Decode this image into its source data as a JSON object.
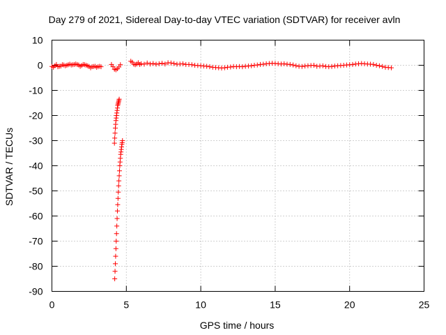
{
  "chart_data": {
    "type": "scatter",
    "title": "Day 279 of 2021, Sidereal Day-to-day VTEC variation (SDTVAR) for receiver avln",
    "xlabel": "GPS time / hours",
    "ylabel": "SDTVAR / TECUs",
    "xlim": [
      0,
      25
    ],
    "ylim": [
      -90,
      10
    ],
    "xticks": [
      0,
      5,
      10,
      15,
      20,
      25
    ],
    "yticks": [
      10,
      0,
      -10,
      -20,
      -30,
      -40,
      -50,
      -60,
      -70,
      -80,
      -90
    ],
    "grid": true,
    "marker": "+",
    "color": "#ff0000",
    "series": [
      {
        "name": "SDTVAR",
        "segments": [
          {
            "x": [
              0.0,
              0.1,
              0.2,
              0.3,
              0.4,
              0.5,
              0.6,
              0.7,
              0.8,
              0.9,
              1.0,
              1.1,
              1.2,
              1.3,
              1.4,
              1.5,
              1.6,
              1.7,
              1.8,
              1.9,
              2.0,
              2.1,
              2.2,
              2.3,
              2.4,
              2.5,
              2.6,
              2.7,
              2.8,
              2.9,
              3.0,
              3.1,
              3.2,
              3.3
            ],
            "y": [
              -0.5,
              -0.8,
              -0.2,
              0.3,
              -0.6,
              -0.4,
              -0.3,
              0.2,
              0.1,
              -0.2,
              0.0,
              0.2,
              0.4,
              0.1,
              0.2,
              0.3,
              0.5,
              0.3,
              0.1,
              -0.4,
              -0.1,
              0.3,
              0.2,
              0.0,
              -0.2,
              -0.5,
              -1.0,
              -0.6,
              -0.5,
              -0.4,
              -0.8,
              -0.6,
              -0.4,
              -0.6
            ]
          },
          {
            "x": [
              4.0,
              4.1,
              4.2,
              4.3,
              4.4,
              4.5,
              4.6
            ],
            "y": [
              0.3,
              -0.6,
              -1.6,
              -1.8,
              -1.4,
              -0.7,
              0.2
            ]
          },
          {
            "x": [
              5.3,
              5.4,
              5.5,
              5.6,
              5.7,
              5.8,
              5.9,
              6.0,
              6.2,
              6.4,
              6.6,
              6.8,
              7.0,
              7.2,
              7.4,
              7.6,
              7.8,
              8.0,
              8.2,
              8.4,
              8.6,
              8.8,
              9.0,
              9.2,
              9.4,
              9.6,
              9.8,
              10.0,
              10.2,
              10.4,
              10.6,
              10.8,
              11.0,
              11.2,
              11.4,
              11.6,
              11.8,
              12.0,
              12.2,
              12.4,
              12.6,
              12.8,
              13.0,
              13.2,
              13.4,
              13.6,
              13.8,
              14.0,
              14.2,
              14.4,
              14.6,
              14.8,
              15.0,
              15.2,
              15.4,
              15.6,
              15.8,
              16.0,
              16.2,
              16.4,
              16.6,
              16.8,
              17.0,
              17.2,
              17.4,
              17.6,
              17.8,
              18.0,
              18.2,
              18.4,
              18.6,
              18.8,
              19.0,
              19.2,
              19.4,
              19.6,
              19.8,
              20.0,
              20.2,
              20.4,
              20.6,
              20.8,
              21.0,
              21.2,
              21.4,
              21.6,
              21.8,
              22.0,
              22.2,
              22.4,
              22.6,
              22.8
            ],
            "y": [
              1.6,
              1.2,
              0.4,
              0.2,
              0.5,
              1.0,
              0.3,
              0.6,
              0.4,
              0.9,
              0.5,
              0.7,
              0.4,
              0.6,
              0.8,
              0.5,
              1.0,
              0.9,
              0.7,
              0.4,
              0.5,
              0.6,
              0.3,
              0.3,
              0.2,
              0.0,
              -0.1,
              -0.2,
              -0.3,
              -0.4,
              -0.6,
              -0.8,
              -0.9,
              -1.0,
              -1.1,
              -1.0,
              -0.8,
              -0.7,
              -0.5,
              -0.6,
              -0.5,
              -0.6,
              -0.4,
              -0.3,
              -0.2,
              0.0,
              0.1,
              0.3,
              0.4,
              0.6,
              0.7,
              0.8,
              0.7,
              0.6,
              0.5,
              0.6,
              0.4,
              0.3,
              0.1,
              -0.2,
              -0.4,
              -0.5,
              -0.3,
              -0.2,
              -0.1,
              0.0,
              -0.4,
              -0.3,
              -0.2,
              -0.5,
              -0.6,
              -0.5,
              -0.3,
              -0.2,
              -0.1,
              0.0,
              0.1,
              0.2,
              0.3,
              0.5,
              0.6,
              0.7,
              0.6,
              0.5,
              0.4,
              0.3,
              0.0,
              -0.2,
              -0.5,
              -0.8,
              -0.9,
              -1.0
            ]
          },
          {
            "x": [
              4.2,
              4.22,
              4.24,
              4.26,
              4.28,
              4.3,
              4.32,
              4.34,
              4.36,
              4.38,
              4.4,
              4.42,
              4.44,
              4.46,
              4.48,
              4.5,
              4.52
            ],
            "y": [
              -31.0,
              -29.0,
              -27.0,
              -25.0,
              -23.5,
              -22.0,
              -21.0,
              -20.0,
              -19.0,
              -18.0,
              -17.0,
              -16.0,
              -15.5,
              -15.0,
              -14.5,
              -14.0,
              -13.5
            ]
          },
          {
            "x": [
              4.22,
              4.24,
              4.26,
              4.28,
              4.3,
              4.32,
              4.34,
              4.36,
              4.38,
              4.4,
              4.42,
              4.44,
              4.46,
              4.48,
              4.5,
              4.52,
              4.54,
              4.56,
              4.58,
              4.6,
              4.62,
              4.64,
              4.66,
              4.68,
              4.7,
              4.72,
              4.74
            ],
            "y": [
              -85.0,
              -82.0,
              -79.0,
              -76.0,
              -73.0,
              -70.0,
              -67.0,
              -64.0,
              -61.0,
              -58.0,
              -55.5,
              -53.0,
              -50.5,
              -48.0,
              -46.0,
              -44.0,
              -42.0,
              -40.0,
              -38.5,
              -37.0,
              -35.5,
              -34.5,
              -33.5,
              -32.5,
              -31.5,
              -30.8,
              -30.0
            ]
          }
        ]
      }
    ]
  }
}
